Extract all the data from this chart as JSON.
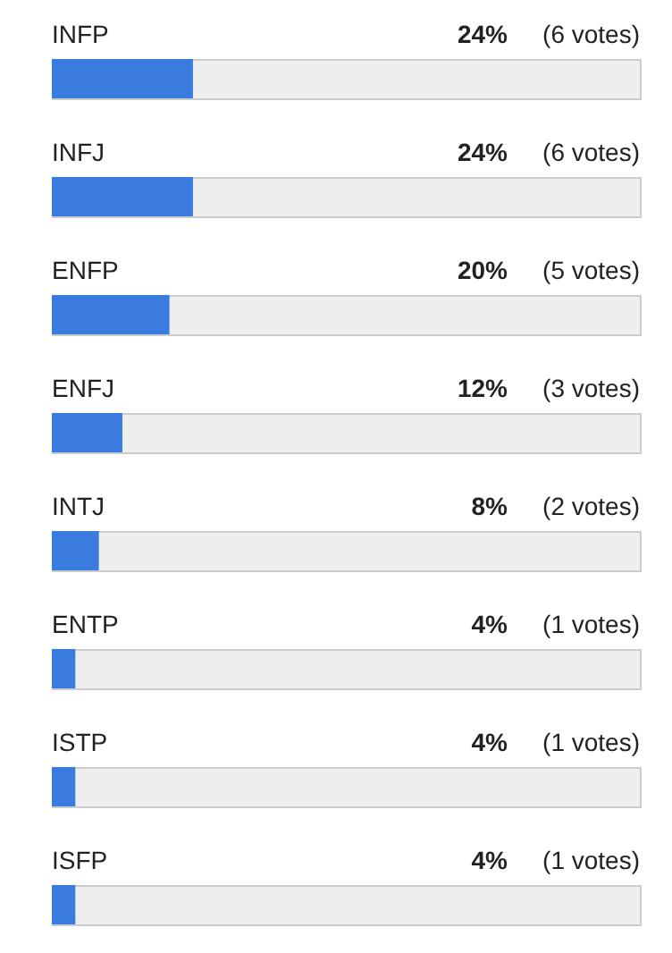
{
  "chart_data": {
    "type": "bar",
    "orientation": "horizontal",
    "categories": [
      "INFP",
      "INFJ",
      "ENFP",
      "ENFJ",
      "INTJ",
      "ENTP",
      "ISTP",
      "ISFP"
    ],
    "values": [
      24,
      24,
      20,
      12,
      8,
      4,
      4,
      4
    ],
    "color": "#3a7be0",
    "xlim": [
      0,
      100
    ],
    "value_labels": [
      "24%",
      "24%",
      "20%",
      "12%",
      "8%",
      "4%",
      "4%",
      "4%"
    ],
    "annotations": [
      "(6 votes)",
      "(6 votes)",
      "(5 votes)",
      "(3 votes)",
      "(2 votes)",
      "(1 votes)",
      "(1 votes)",
      "(1 votes)"
    ]
  }
}
